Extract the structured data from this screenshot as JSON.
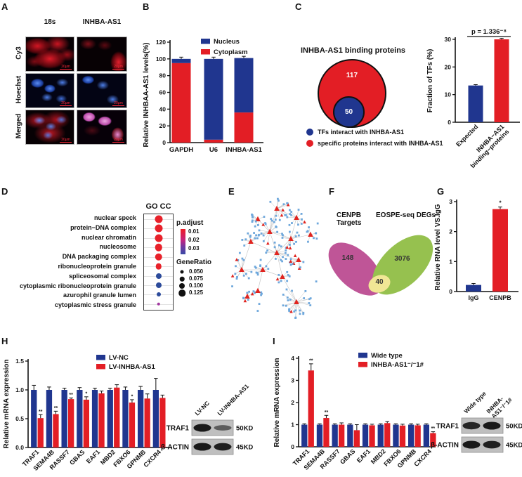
{
  "figure_type": "multi-panel research figure",
  "panels": {
    "A": {
      "label": "A",
      "col_headers": [
        "18s",
        "INHBA-AS1"
      ],
      "row_labels": [
        "Cy3",
        "Hoechst",
        "Merged"
      ],
      "scale_bar": "20μm"
    },
    "B": {
      "label": "B"
    },
    "C": {
      "label": "C"
    },
    "D": {
      "label": "D"
    },
    "E": {
      "label": "E"
    },
    "F": {
      "label": "F"
    },
    "G": {
      "label": "G"
    },
    "H": {
      "label": "H",
      "blot": {
        "lanes": [
          [
            "LV-NC"
          ],
          [
            "LV-INHBA-AS1"
          ]
        ],
        "rows": [
          {
            "protein": "TRAF1",
            "size": "50KD",
            "band_intensities": [
              1.0,
              0.45
            ]
          },
          {
            "protein": "β-ACTIN",
            "size": "45KD",
            "band_intensities": [
              1.0,
              0.95
            ]
          }
        ]
      }
    },
    "I": {
      "label": "I",
      "blot": {
        "lanes": [
          [
            "Wide type"
          ],
          [
            "INHBA-",
            "AS1⁻/⁻1#"
          ]
        ],
        "rows": [
          {
            "protein": "TRAF1",
            "size": "50KD",
            "band_intensities": [
              0.9,
              1.0
            ]
          },
          {
            "protein": "β-ACTIN",
            "size": "45KD",
            "band_intensities": [
              1.0,
              0.95
            ]
          }
        ]
      }
    }
  },
  "colors": {
    "navy": "#20368f",
    "red": "#e31e25",
    "dot_red": "#e8212a",
    "dot_blue": "#2c4b9b",
    "dot_purple": "#a238a0",
    "venn_magenta": "#bf5597",
    "venn_green": "#96c14f",
    "venn_overlap": "#f1e795",
    "net_blue": "#6fa8dc",
    "net_red": "#e0241f",
    "net_edge": "#c2c2c2"
  },
  "chart_data": [
    {
      "id": "B",
      "type": "bar",
      "subtype": "stacked",
      "ylabel": "Relative INHBAA-AS1 levels(%)",
      "ylim": [
        0,
        120
      ],
      "yticks": [
        0,
        20,
        40,
        60,
        80,
        100,
        120
      ],
      "categories": [
        "GAPDH",
        "U6",
        "INHBA-AS1"
      ],
      "series": [
        {
          "name": "Cytoplasm",
          "color": "#e31e25",
          "values": [
            95,
            3.5,
            36
          ]
        },
        {
          "name": "Nucleus",
          "color": "#20368f",
          "values": [
            5,
            96.5,
            65
          ]
        }
      ],
      "legend": [
        {
          "label": "Nucleus",
          "color": "#20368f"
        },
        {
          "label": "Cytoplasm",
          "color": "#e31e25"
        }
      ]
    },
    {
      "id": "C_venn",
      "type": "venn-nested",
      "title": "INHBA-AS1 binding proteins",
      "outer": {
        "count": 117,
        "color": "#e31e25"
      },
      "inner": {
        "count": 50,
        "color": "#20368f"
      },
      "legend": [
        {
          "color": "#20368f",
          "label": "TFs interact with INHBA-AS1"
        },
        {
          "color": "#e31e25",
          "label": "specific proteins interact with INHBA-AS1"
        }
      ]
    },
    {
      "id": "C_bar",
      "type": "bar",
      "ylabel": "Fraction of TFs (%)",
      "ylim": [
        0,
        30
      ],
      "yticks": [
        0,
        10,
        20,
        30
      ],
      "categories": [
        [
          "Expected"
        ],
        [
          "INHBA−AS1",
          "binding−proteins"
        ]
      ],
      "values": [
        13.3,
        30
      ],
      "errors": [
        0.3,
        0.35
      ],
      "bar_colors": [
        "#20368f",
        "#e31e25"
      ],
      "annotation": "p = 1.336⁻⁸"
    },
    {
      "id": "D",
      "type": "dotplot",
      "title": "GO CC",
      "terms": [
        {
          "term": "nuclear speck",
          "color": "#e8212a",
          "size": 11
        },
        {
          "term": "protein−DNA complex",
          "color": "#e8212a",
          "size": 11
        },
        {
          "term": "nuclear chromatin",
          "color": "#e8212a",
          "size": 11
        },
        {
          "term": "nucleosome",
          "color": "#e8212a",
          "size": 10.5
        },
        {
          "term": "DNA packaging complex",
          "color": "#e8212a",
          "size": 10.5
        },
        {
          "term": "ribonucleoprotein granule",
          "color": "#e8212a",
          "size": 8.5
        },
        {
          "term": "spliceosomal complex",
          "color": "#2c4b9b",
          "size": 8
        },
        {
          "term": "cytoplasmic ribonucleoprotein granule",
          "color": "#2c4b9b",
          "size": 8
        },
        {
          "term": "azurophil granule lumen",
          "color": "#2c4b9b",
          "size": 6
        },
        {
          "term": "cytoplasmic stress granule",
          "color": "#a238a0",
          "size": 4.5
        }
      ],
      "p_adjust_legend": {
        "title": "p.adjust",
        "ticks": [
          "0.01",
          "0.02",
          "0.03"
        ]
      },
      "gene_ratio_legend": {
        "title": "GeneRatio",
        "items": [
          {
            "label": "0.050",
            "size": 5
          },
          {
            "label": "0.075",
            "size": 6.5
          },
          {
            "label": "0.100",
            "size": 8
          },
          {
            "label": "0.125",
            "size": 9.5
          }
        ]
      }
    },
    {
      "id": "E_network",
      "type": "network",
      "node_shapes": {
        "square": {
          "color": "#6fa8dc"
        },
        "triangle": {
          "color": "#e0241f"
        }
      },
      "approx_square_nodes": 230,
      "approx_triangle_nodes": 30,
      "edge_color": "#c2c2c2"
    },
    {
      "id": "F_venn",
      "type": "venn",
      "sets": [
        {
          "name": "CENPB Targets",
          "count": 148,
          "color": "#bf5597"
        },
        {
          "name": "EOSPE-seq DEGs",
          "count": 3076,
          "color": "#96c14f"
        }
      ],
      "overlap": {
        "count": 40,
        "color": "#f1e795"
      }
    },
    {
      "id": "G",
      "type": "bar",
      "ylabel": "Relative RNA level VS.IgG",
      "ylim": [
        0,
        3
      ],
      "yticks": [
        0,
        1,
        2,
        3
      ],
      "categories": [
        [
          "IgG"
        ],
        [
          "CENPB"
        ]
      ],
      "values": [
        0.22,
        2.75
      ],
      "errors": [
        0.05,
        0.07
      ],
      "bar_colors": [
        "#20368f",
        "#e31e25"
      ],
      "sig": [
        "",
        "*"
      ]
    },
    {
      "id": "H",
      "type": "bar",
      "subtype": "grouped",
      "ylabel": "Relative mRNA expression",
      "ylim": [
        0,
        1.5
      ],
      "yticks": [
        0,
        0.5,
        1,
        1.5
      ],
      "ytick_labels": [
        "0.0",
        "0.5",
        "1.0",
        "1.5"
      ],
      "categories": [
        "TRAF1",
        "SEMA4B",
        "RASSF7",
        "GBAS",
        "EAF1",
        "MBD2",
        "FBXO6",
        "GPNMB",
        "CXCR4"
      ],
      "series": [
        {
          "name": "LV-NC",
          "color": "#20368f",
          "values": [
            1,
            1,
            1,
            1,
            1,
            1,
            1,
            1,
            1
          ],
          "errors": [
            0.08,
            0.05,
            0.03,
            0.04,
            0.03,
            0.03,
            0.05,
            0.06,
            0.2
          ]
        },
        {
          "name": "LV-INHBA-AS1",
          "color": "#e31e25",
          "values": [
            0.51,
            0.58,
            0.84,
            0.83,
            0.94,
            1.04,
            0.78,
            0.85,
            0.86
          ],
          "errors": [
            0.06,
            0.05,
            0.02,
            0.05,
            0.04,
            0.05,
            0.05,
            0.08,
            0.05
          ],
          "sig": [
            "**",
            "**",
            "**",
            "*",
            "",
            "",
            "*",
            "",
            ""
          ]
        }
      ]
    },
    {
      "id": "I",
      "type": "bar",
      "subtype": "grouped",
      "ylabel": "Relative mRNA expression",
      "ylim": [
        0,
        4
      ],
      "yticks": [
        0,
        1,
        2,
        3,
        4
      ],
      "ytick_labels": [
        "0",
        "1",
        "2",
        "3",
        "4"
      ],
      "categories": [
        "TRAF1",
        "SEMA4B",
        "RASSF7",
        "GBAS",
        "EAF1",
        "MBD2",
        "FBXO6",
        "GPNMB",
        "CXCR4"
      ],
      "series": [
        {
          "name": "Wide type",
          "color": "#20368f",
          "values": [
            1,
            1,
            1,
            1,
            1,
            1,
            1,
            1,
            1
          ],
          "errors": [
            0.04,
            0.04,
            0.04,
            0.04,
            0.04,
            0.04,
            0.04,
            0.04,
            0.04
          ]
        },
        {
          "name": "INHBA-AS1⁻/⁻1#",
          "color": "#e31e25",
          "values": [
            3.45,
            1.3,
            1.0,
            0.75,
            0.97,
            1.07,
            0.96,
            0.97,
            0.62
          ],
          "errors": [
            0.3,
            0.12,
            0.08,
            0.25,
            0.05,
            0.07,
            0.06,
            0.05,
            0.06
          ],
          "sig": [
            "**",
            "**",
            "",
            "",
            "",
            "",
            "",
            "",
            "**"
          ]
        }
      ]
    }
  ]
}
